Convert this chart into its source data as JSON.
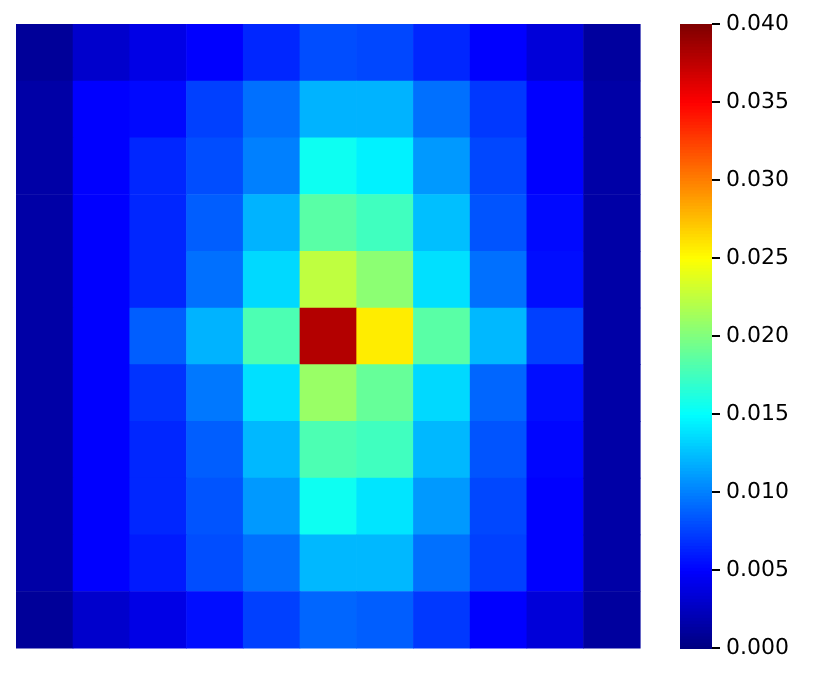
{
  "chart_data": {
    "type": "heatmap",
    "tick_labels": false,
    "categories": [
      null,
      null,
      null,
      null,
      null,
      null,
      null,
      null,
      null,
      null,
      null
    ],
    "y_categories": [
      null,
      null,
      null,
      null,
      null,
      null,
      null,
      null,
      null,
      null,
      null
    ],
    "cells": [
      [
        0.001,
        0.003,
        0.004,
        0.005,
        0.0065,
        0.008,
        0.0078,
        0.0065,
        0.005,
        0.0035,
        0.0012
      ],
      [
        0.0015,
        0.005,
        0.0053,
        0.0075,
        0.0094,
        0.012,
        0.012,
        0.0094,
        0.0072,
        0.005,
        0.0015
      ],
      [
        0.0015,
        0.005,
        0.0065,
        0.008,
        0.01,
        0.0155,
        0.0145,
        0.011,
        0.0078,
        0.005,
        0.0015
      ],
      [
        0.0015,
        0.005,
        0.0065,
        0.0087,
        0.012,
        0.0185,
        0.0175,
        0.0125,
        0.0083,
        0.0053,
        0.0015
      ],
      [
        0.0015,
        0.005,
        0.0065,
        0.0094,
        0.0135,
        0.0225,
        0.0205,
        0.0138,
        0.0094,
        0.0055,
        0.0015
      ],
      [
        0.0015,
        0.005,
        0.0087,
        0.012,
        0.018,
        0.038,
        0.0257,
        0.0185,
        0.0122,
        0.0075,
        0.0015
      ],
      [
        0.0015,
        0.005,
        0.007,
        0.0097,
        0.0138,
        0.021,
        0.019,
        0.0135,
        0.009,
        0.0055,
        0.0015
      ],
      [
        0.0015,
        0.005,
        0.0065,
        0.0087,
        0.0122,
        0.018,
        0.0175,
        0.0122,
        0.0083,
        0.0052,
        0.0015
      ],
      [
        0.0015,
        0.005,
        0.0065,
        0.0083,
        0.011,
        0.0155,
        0.014,
        0.011,
        0.0078,
        0.005,
        0.0015
      ],
      [
        0.0015,
        0.005,
        0.006,
        0.008,
        0.0094,
        0.0122,
        0.0122,
        0.0094,
        0.0075,
        0.005,
        0.0015
      ],
      [
        0.001,
        0.003,
        0.004,
        0.0055,
        0.0075,
        0.009,
        0.0087,
        0.0072,
        0.005,
        0.0035,
        0.0012
      ]
    ],
    "clim": [
      0,
      0.04
    ],
    "cticks": [
      {
        "value": 0,
        "label": "0.000"
      },
      {
        "value": 0.005,
        "label": "0.005"
      },
      {
        "value": 0.01,
        "label": "0.010"
      },
      {
        "value": 0.015,
        "label": "0.015"
      },
      {
        "value": 0.02,
        "label": "0.020"
      },
      {
        "value": 0.025,
        "label": "0.025"
      },
      {
        "value": 0.03,
        "label": "0.030"
      },
      {
        "value": 0.035,
        "label": "0.035"
      },
      {
        "value": 0.04,
        "label": "0.040"
      }
    ]
  }
}
